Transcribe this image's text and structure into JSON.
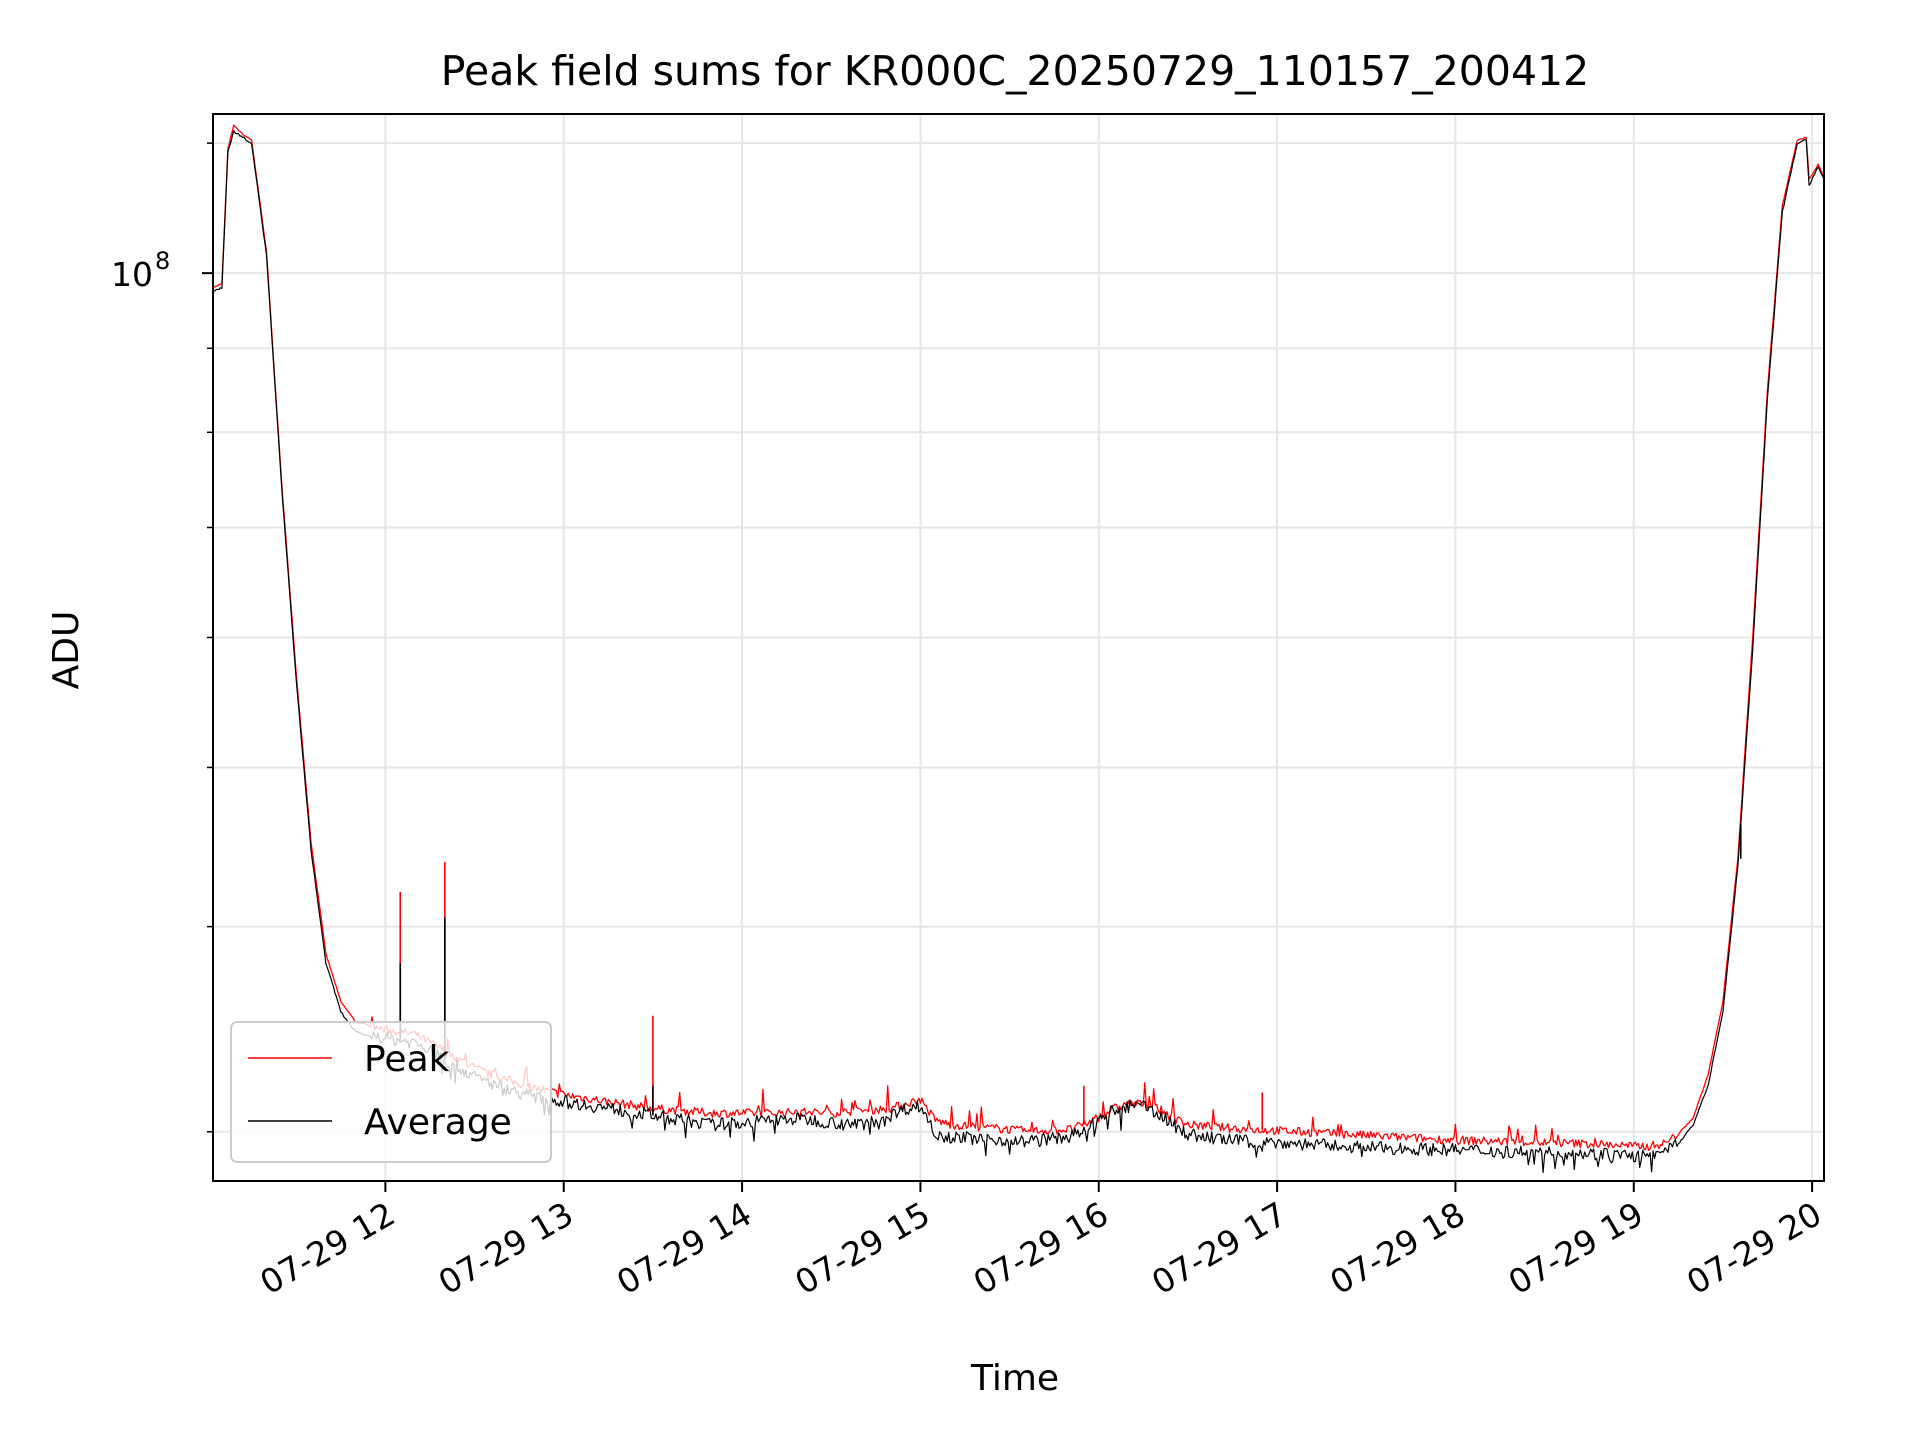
{
  "chart_data": {
    "type": "line",
    "title": "Peak field sums for KR000C_20250729_110157_200412",
    "xlabel": "Time",
    "ylabel": "ADU",
    "yscale": "log",
    "ylim": [
      28000000,
      125000000
    ],
    "xlim": [
      "2025-07-29 11:02",
      "2025-07-29 20:04"
    ],
    "x_ticks": [
      "07-29 12",
      "07-29 13",
      "07-29 14",
      "07-29 15",
      "07-29 16",
      "07-29 17",
      "07-29 18",
      "07-29 19",
      "07-29 20"
    ],
    "y_ticks": [
      {
        "base": "10",
        "exp": "8",
        "value": 100000000
      }
    ],
    "grid": true,
    "legend_position": "lower-left",
    "series": [
      {
        "name": "Peak",
        "color": "#ff0000",
        "x": [
          "2025-07-29 11:02",
          "2025-07-29 11:05",
          "2025-07-29 11:07",
          "2025-07-29 11:09",
          "2025-07-29 11:12",
          "2025-07-29 11:15",
          "2025-07-29 11:20",
          "2025-07-29 11:25",
          "2025-07-29 11:30",
          "2025-07-29 11:35",
          "2025-07-29 11:40",
          "2025-07-29 11:45",
          "2025-07-29 11:50",
          "2025-07-29 11:55",
          "2025-07-29 12:00",
          "2025-07-29 12:05",
          "2025-07-29 12:10",
          "2025-07-29 12:15",
          "2025-07-29 12:20",
          "2025-07-29 12:25",
          "2025-07-29 12:30",
          "2025-07-29 12:40",
          "2025-07-29 12:50",
          "2025-07-29 13:00",
          "2025-07-29 13:10",
          "2025-07-29 13:20",
          "2025-07-29 13:30",
          "2025-07-29 13:40",
          "2025-07-29 13:50",
          "2025-07-29 14:00",
          "2025-07-29 14:10",
          "2025-07-29 14:20",
          "2025-07-29 14:30",
          "2025-07-29 14:40",
          "2025-07-29 14:50",
          "2025-07-29 14:55",
          "2025-07-29 15:00",
          "2025-07-29 15:05",
          "2025-07-29 15:10",
          "2025-07-29 15:20",
          "2025-07-29 15:30",
          "2025-07-29 15:35",
          "2025-07-29 15:40",
          "2025-07-29 15:50",
          "2025-07-29 15:55",
          "2025-07-29 16:00",
          "2025-07-29 16:05",
          "2025-07-29 16:10",
          "2025-07-29 16:15",
          "2025-07-29 16:20",
          "2025-07-29 16:25",
          "2025-07-29 16:30",
          "2025-07-29 16:40",
          "2025-07-29 16:50",
          "2025-07-29 17:00",
          "2025-07-29 17:15",
          "2025-07-29 17:30",
          "2025-07-29 17:45",
          "2025-07-29 18:00",
          "2025-07-29 18:15",
          "2025-07-29 18:30",
          "2025-07-29 18:45",
          "2025-07-29 18:55",
          "2025-07-29 19:00",
          "2025-07-29 19:05",
          "2025-07-29 19:10",
          "2025-07-29 19:15",
          "2025-07-29 19:20",
          "2025-07-29 19:25",
          "2025-07-29 19:30",
          "2025-07-29 19:35",
          "2025-07-29 19:40",
          "2025-07-29 19:45",
          "2025-07-29 19:50",
          "2025-07-29 19:55",
          "2025-07-29 19:58",
          "2025-07-29 19:59",
          "2025-07-29 20:02",
          "2025-07-29 20:04"
        ],
        "y": [
          98000000,
          98500000,
          119000000,
          123000000,
          121500000,
          120500000,
          103000000,
          75000000,
          57000000,
          45000000,
          38500000,
          36000000,
          35000000,
          34800000,
          34600000,
          34500000,
          34400000,
          34000000,
          33600000,
          33200000,
          32800000,
          32300000,
          31900000,
          31600000,
          31400000,
          31200000,
          31000000,
          30900000,
          30800000,
          30800000,
          30800000,
          30850000,
          30800000,
          30900000,
          31000000,
          31200000,
          31400000,
          30500000,
          30300000,
          30200000,
          30100000,
          30000000,
          30050000,
          30100000,
          30300000,
          30600000,
          31000000,
          31200000,
          31200000,
          31000000,
          30600000,
          30300000,
          30200000,
          30100000,
          30050000,
          29950000,
          29850000,
          29750000,
          29650000,
          29600000,
          29550000,
          29500000,
          29450000,
          29400000,
          29400000,
          29500000,
          29900000,
          30600000,
          32500000,
          36000000,
          44000000,
          60000000,
          85000000,
          110000000,
          120500000,
          121000000,
          114000000,
          116500000,
          114500000
        ],
        "spikes": [
          {
            "x": "2025-07-29 12:05",
            "y": 42000000
          },
          {
            "x": "2025-07-29 12:20",
            "y": 43800000
          },
          {
            "x": "2025-07-29 13:30",
            "y": 35300000
          },
          {
            "x": "2025-07-29 15:55",
            "y": 32000000
          },
          {
            "x": "2025-07-29 16:55",
            "y": 31700000
          },
          {
            "x": "2025-07-29 19:36",
            "y": 46500000
          }
        ]
      },
      {
        "name": "Average",
        "color": "#000000",
        "x": [
          "2025-07-29 11:02",
          "2025-07-29 11:05",
          "2025-07-29 11:07",
          "2025-07-29 11:09",
          "2025-07-29 11:12",
          "2025-07-29 11:15",
          "2025-07-29 11:20",
          "2025-07-29 11:25",
          "2025-07-29 11:30",
          "2025-07-29 11:35",
          "2025-07-29 11:40",
          "2025-07-29 11:45",
          "2025-07-29 11:50",
          "2025-07-29 11:55",
          "2025-07-29 12:00",
          "2025-07-29 12:05",
          "2025-07-29 12:10",
          "2025-07-29 12:15",
          "2025-07-29 12:20",
          "2025-07-29 12:25",
          "2025-07-29 12:30",
          "2025-07-29 12:40",
          "2025-07-29 12:50",
          "2025-07-29 13:00",
          "2025-07-29 13:10",
          "2025-07-29 13:20",
          "2025-07-29 13:30",
          "2025-07-29 13:40",
          "2025-07-29 13:50",
          "2025-07-29 14:00",
          "2025-07-29 14:10",
          "2025-07-29 14:20",
          "2025-07-29 14:30",
          "2025-07-29 14:40",
          "2025-07-29 14:50",
          "2025-07-29 14:55",
          "2025-07-29 15:00",
          "2025-07-29 15:05",
          "2025-07-29 15:10",
          "2025-07-29 15:20",
          "2025-07-29 15:30",
          "2025-07-29 15:35",
          "2025-07-29 15:40",
          "2025-07-29 15:50",
          "2025-07-29 15:55",
          "2025-07-29 16:00",
          "2025-07-29 16:05",
          "2025-07-29 16:10",
          "2025-07-29 16:15",
          "2025-07-29 16:20",
          "2025-07-29 16:25",
          "2025-07-29 16:30",
          "2025-07-29 16:40",
          "2025-07-29 16:50",
          "2025-07-29 17:00",
          "2025-07-29 17:15",
          "2025-07-29 17:30",
          "2025-07-29 17:45",
          "2025-07-29 18:00",
          "2025-07-29 18:15",
          "2025-07-29 18:30",
          "2025-07-29 18:45",
          "2025-07-29 18:55",
          "2025-07-29 19:00",
          "2025-07-29 19:05",
          "2025-07-29 19:10",
          "2025-07-29 19:15",
          "2025-07-29 19:20",
          "2025-07-29 19:25",
          "2025-07-29 19:30",
          "2025-07-29 19:35",
          "2025-07-29 19:40",
          "2025-07-29 19:45",
          "2025-07-29 19:50",
          "2025-07-29 19:55",
          "2025-07-29 19:58",
          "2025-07-29 19:59",
          "2025-07-29 20:02",
          "2025-07-29 20:04"
        ],
        "y": [
          97500000,
          98000000,
          118500000,
          122000000,
          121000000,
          120000000,
          102500000,
          74500000,
          56500000,
          44500000,
          38000000,
          35500000,
          34500000,
          34300000,
          34200000,
          34100000,
          34000000,
          33600000,
          33200000,
          32800000,
          32400000,
          31900000,
          31500000,
          31300000,
          31100000,
          30900000,
          30700000,
          30500000,
          30300000,
          30400000,
          30500000,
          30550000,
          30400000,
          30300000,
          30700000,
          31000000,
          31100000,
          30000000,
          29800000,
          29700000,
          29650000,
          29600000,
          29650000,
          29800000,
          30000000,
          30500000,
          30900000,
          31100000,
          31100000,
          30800000,
          30300000,
          29900000,
          29700000,
          29600000,
          29550000,
          29450000,
          29350000,
          29300000,
          29250000,
          29200000,
          29150000,
          29100000,
          29050000,
          29000000,
          29000000,
          29100000,
          29500000,
          30300000,
          32000000,
          35500000,
          43500000,
          59000000,
          84000000,
          109000000,
          120000000,
          120500000,
          113000000,
          116000000,
          114000000
        ],
        "spikes": [
          {
            "x": "2025-07-29 12:05",
            "y": 38000000
          },
          {
            "x": "2025-07-29 12:20",
            "y": 40500000
          },
          {
            "x": "2025-07-29 13:30",
            "y": 32000000
          },
          {
            "x": "2025-07-29 19:36",
            "y": 44000000
          }
        ]
      }
    ]
  }
}
